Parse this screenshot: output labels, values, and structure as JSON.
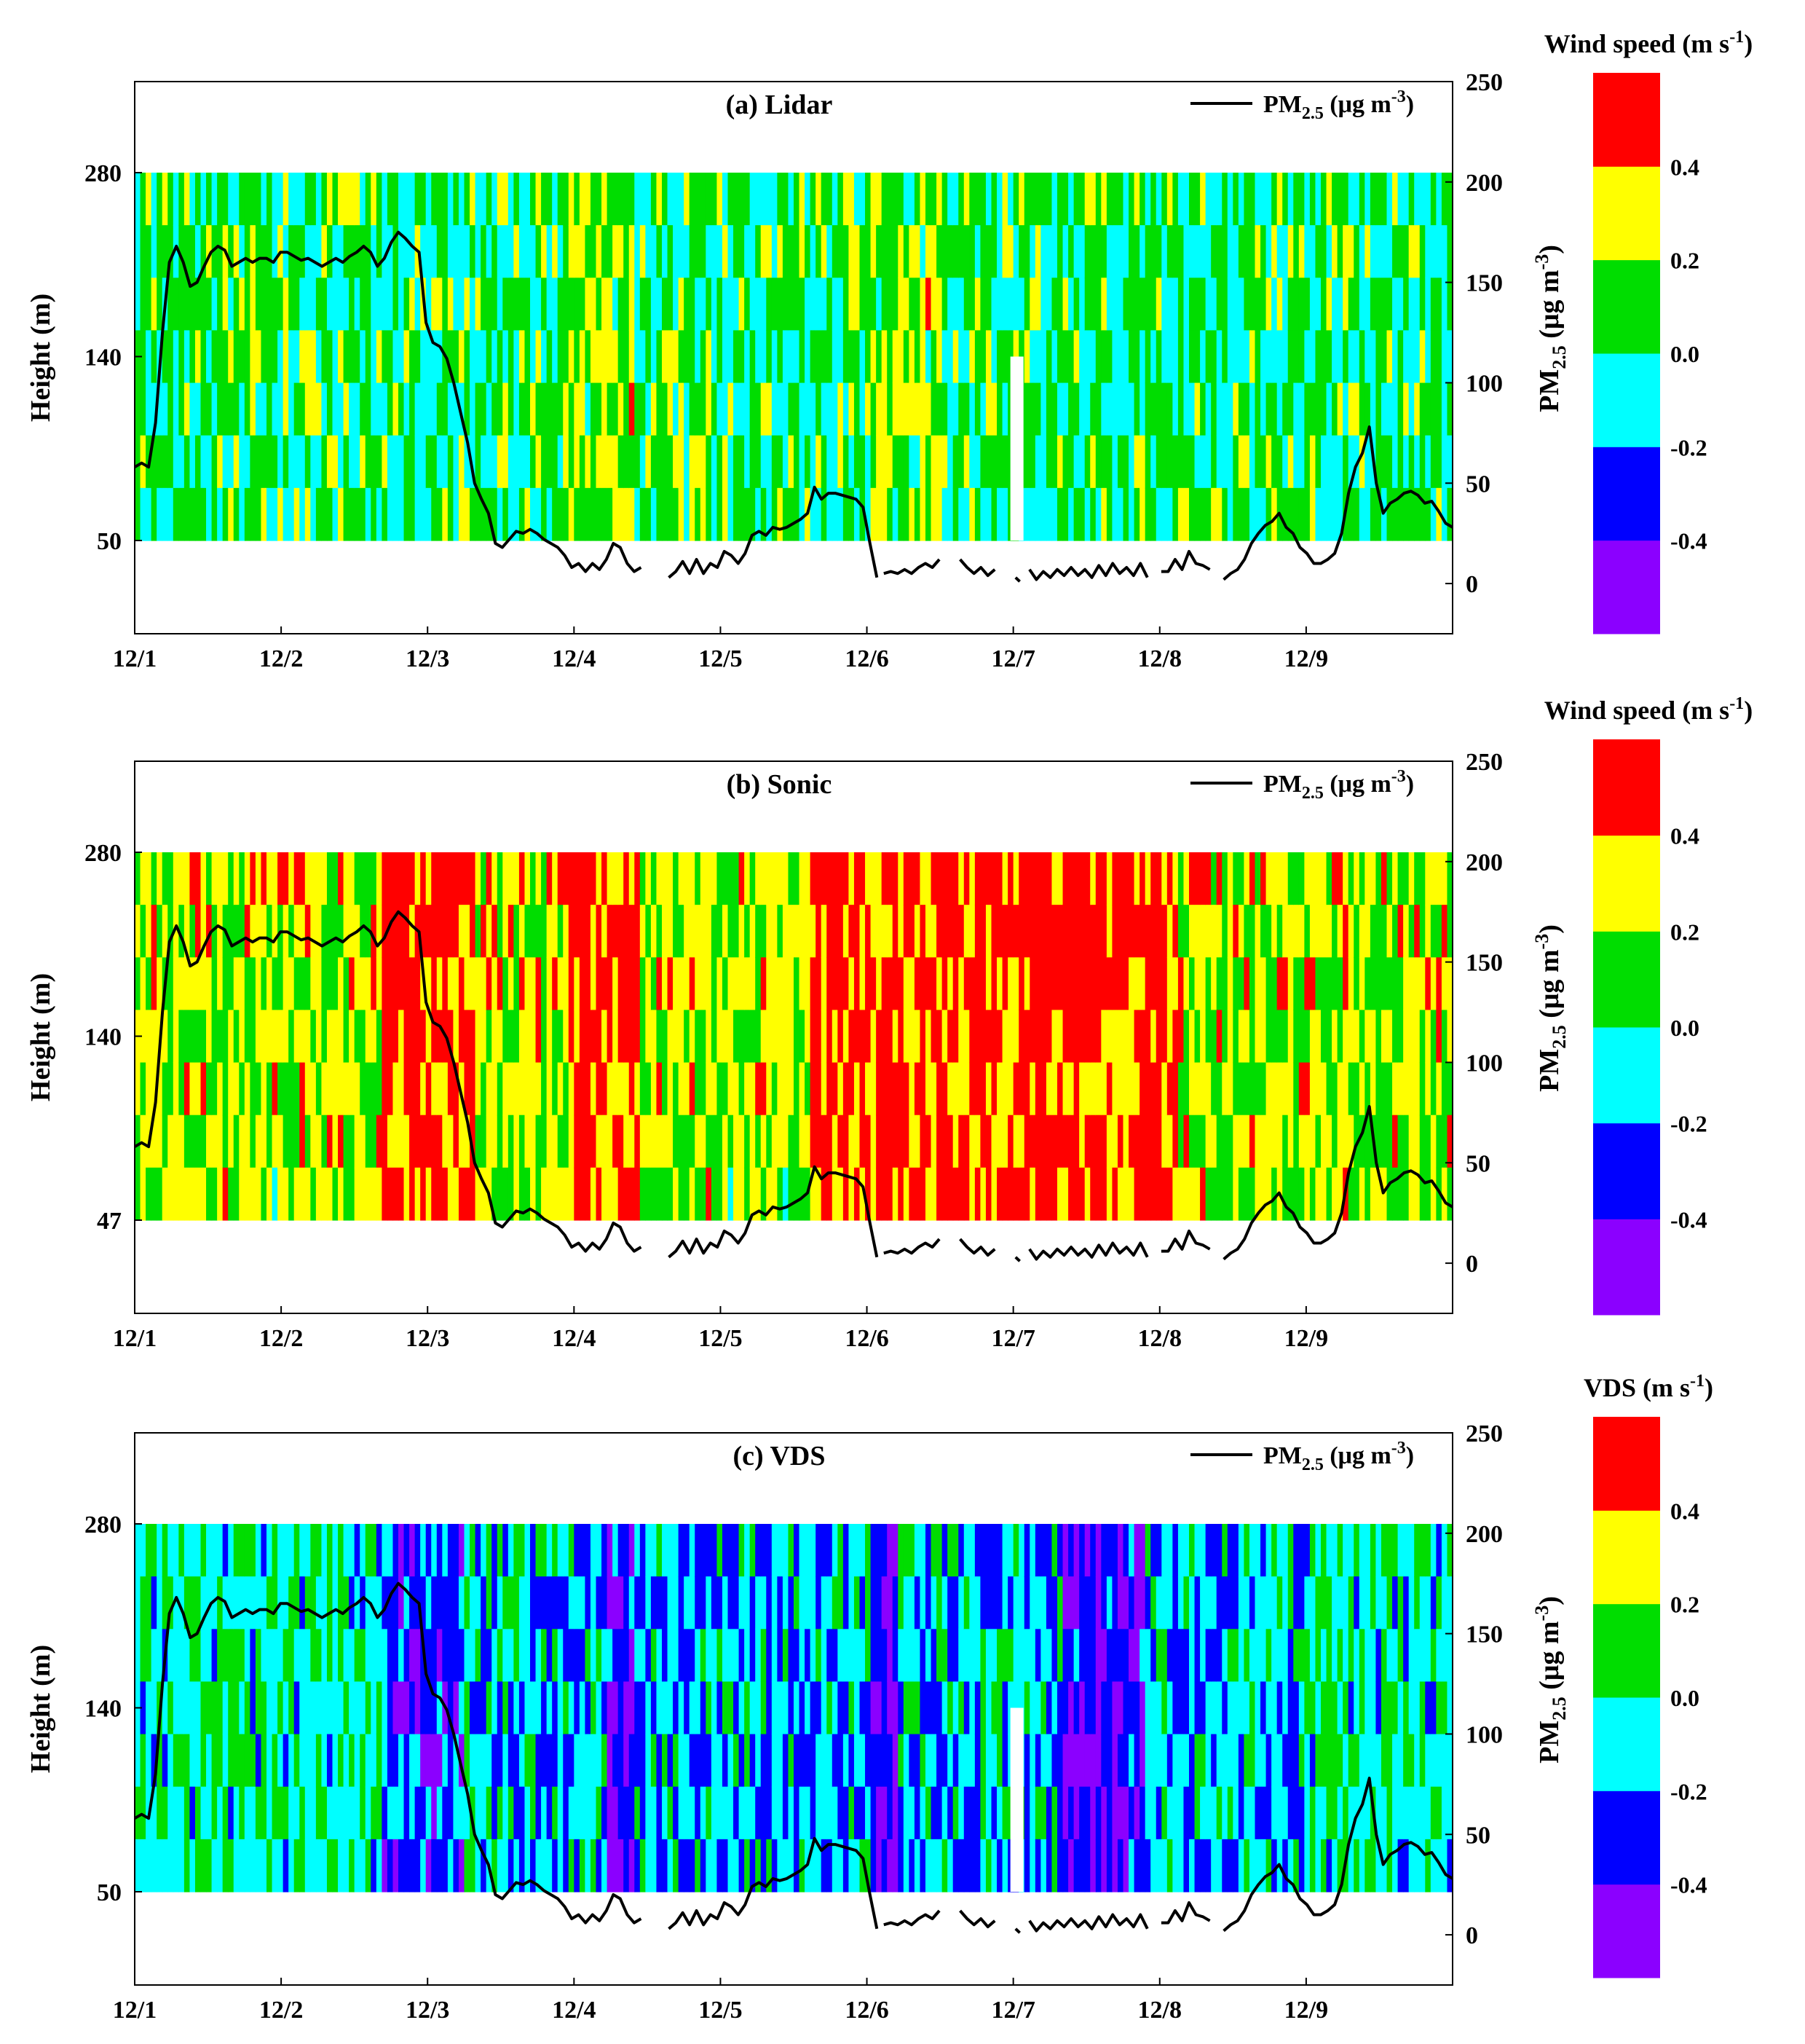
{
  "colors": {
    "bins": [
      "#8B00FF",
      "#0000FF",
      "#00FFFF",
      "#00DD00",
      "#FFFF00",
      "#FF0000"
    ],
    "line": "#000000",
    "frame": "#000000"
  },
  "chart_data": [
    {
      "type": "heatmap",
      "panel_label": "(a) Lidar",
      "legend_line_label": "PM",
      "legend_line_sub": "2.5",
      "legend_line_unit": " (μg m",
      "legend_line_sup": "-3",
      "legend_line_close": ")",
      "ylabel": "Height (m)",
      "y_ticks": [
        "280",
        "140",
        "50"
      ],
      "y2label": "PM",
      "y2label_sub": "2.5",
      "y2label_unit": " (μg m",
      "y2label_sup": "-3",
      "y2label_close": ")",
      "y2_ticks": [
        "250",
        "200",
        "150",
        "100",
        "50",
        "0"
      ],
      "y2lim": [
        -25,
        250
      ],
      "x_ticks": [
        "12/1",
        "12/2",
        "12/3",
        "12/4",
        "12/5",
        "12/6",
        "12/7",
        "12/8",
        "12/9"
      ],
      "colorbar_title": "Wind speed (m s",
      "colorbar_sup": "-1",
      "colorbar_close": ")",
      "colorbar_ticks": [
        "0.4",
        "0.2",
        "0.0",
        "-0.2",
        "-0.4"
      ],
      "colorbar_bins": [
        -0.6,
        -0.4,
        -0.2,
        0.0,
        0.2,
        0.4,
        0.6
      ],
      "field_bias": 0.05
    },
    {
      "type": "heatmap",
      "panel_label": "(b)  Sonic",
      "legend_line_label": "PM",
      "legend_line_sub": "2.5",
      "legend_line_unit": " (μg m",
      "legend_line_sup": "-3",
      "legend_line_close": ")",
      "ylabel": "Height (m)",
      "y_ticks": [
        "280",
        "140",
        "47"
      ],
      "y2label": "PM",
      "y2label_sub": "2.5",
      "y2label_unit": " (μg m",
      "y2label_sup": "-3",
      "y2label_close": ")",
      "y2_ticks": [
        "250",
        "200",
        "150",
        "100",
        "50",
        "0"
      ],
      "y2lim": [
        -25,
        250
      ],
      "x_ticks": [
        "12/1",
        "12/2",
        "12/3",
        "12/4",
        "12/5",
        "12/6",
        "12/7",
        "12/8",
        "12/9"
      ],
      "colorbar_title": "Wind speed (m s",
      "colorbar_sup": "-1",
      "colorbar_close": ")",
      "colorbar_ticks": [
        "0.4",
        "0.2",
        "0.0",
        "-0.2",
        "-0.4"
      ],
      "colorbar_bins": [
        -0.6,
        -0.4,
        -0.2,
        0.0,
        0.2,
        0.4,
        0.6
      ],
      "field_bias": 0.2
    },
    {
      "type": "heatmap",
      "panel_label": "(c) VDS",
      "legend_line_label": "PM",
      "legend_line_sub": "2.5",
      "legend_line_unit": " (μg m",
      "legend_line_sup": "-3",
      "legend_line_close": ")",
      "ylabel": "Height (m)",
      "y_ticks": [
        "280",
        "140",
        "50"
      ],
      "y2label": "PM",
      "y2label_sub": "2.5",
      "y2label_unit": " (μg m",
      "y2label_sup": "-3",
      "y2label_close": ")",
      "y2_ticks": [
        "250",
        "200",
        "150",
        "100",
        "50",
        "0"
      ],
      "y2lim": [
        -25,
        250
      ],
      "x_ticks": [
        "12/1",
        "12/2",
        "12/3",
        "12/4",
        "12/5",
        "12/6",
        "12/7",
        "12/8",
        "12/9"
      ],
      "colorbar_title": "VDS (m s",
      "colorbar_sup": "-1",
      "colorbar_close": ")",
      "colorbar_ticks": [
        "0.4",
        "0.2",
        "0.0",
        "-0.2",
        "-0.4"
      ],
      "colorbar_bins": [
        -0.6,
        -0.4,
        -0.2,
        0.0,
        0.2,
        0.4,
        0.6
      ],
      "field_bias": -0.02
    }
  ],
  "pm25_series": [
    [
      0,
      58
    ],
    [
      0.05,
      60
    ],
    [
      0.1,
      58
    ],
    [
      0.15,
      80
    ],
    [
      0.2,
      125
    ],
    [
      0.25,
      160
    ],
    [
      0.3,
      168
    ],
    [
      0.35,
      160
    ],
    [
      0.4,
      148
    ],
    [
      0.45,
      150
    ],
    [
      0.5,
      158
    ],
    [
      0.55,
      165
    ],
    [
      0.6,
      168
    ],
    [
      0.65,
      166
    ],
    [
      0.7,
      158
    ],
    [
      0.75,
      160
    ],
    [
      0.8,
      162
    ],
    [
      0.85,
      160
    ],
    [
      0.9,
      162
    ],
    [
      0.95,
      162
    ],
    [
      1.0,
      160
    ],
    [
      1.05,
      165
    ],
    [
      1.1,
      165
    ],
    [
      1.15,
      163
    ],
    [
      1.2,
      161
    ],
    [
      1.25,
      162
    ],
    [
      1.3,
      160
    ],
    [
      1.35,
      158
    ],
    [
      1.4,
      160
    ],
    [
      1.45,
      162
    ],
    [
      1.5,
      160
    ],
    [
      1.55,
      163
    ],
    [
      1.6,
      165
    ],
    [
      1.65,
      168
    ],
    [
      1.7,
      165
    ],
    [
      1.75,
      158
    ],
    [
      1.8,
      162
    ],
    [
      1.85,
      170
    ],
    [
      1.9,
      175
    ],
    [
      1.95,
      172
    ],
    [
      2.0,
      168
    ],
    [
      2.05,
      165
    ],
    [
      2.1,
      130
    ],
    [
      2.15,
      120
    ],
    [
      2.2,
      118
    ],
    [
      2.25,
      112
    ],
    [
      2.3,
      100
    ],
    [
      2.35,
      85
    ],
    [
      2.4,
      70
    ],
    [
      2.45,
      50
    ],
    [
      2.5,
      42
    ],
    [
      2.55,
      35
    ],
    [
      2.6,
      20
    ],
    [
      2.65,
      18
    ],
    [
      2.7,
      22
    ],
    [
      2.75,
      26
    ],
    [
      2.8,
      25
    ],
    [
      2.85,
      27
    ],
    [
      2.9,
      25
    ],
    [
      2.95,
      22
    ],
    [
      3.0,
      20
    ],
    [
      3.05,
      18
    ],
    [
      3.1,
      14
    ],
    [
      3.15,
      8
    ],
    [
      3.2,
      10
    ],
    [
      3.25,
      6
    ],
    [
      3.3,
      10
    ],
    [
      3.35,
      7
    ],
    [
      3.4,
      12
    ],
    [
      3.45,
      20
    ],
    [
      3.5,
      18
    ],
    [
      3.55,
      10
    ],
    [
      3.6,
      6
    ],
    [
      3.65,
      8
    ],
    [
      3.85,
      3
    ],
    [
      3.9,
      6
    ],
    [
      3.95,
      11
    ],
    [
      4.0,
      5
    ],
    [
      4.05,
      12
    ],
    [
      4.1,
      5
    ],
    [
      4.15,
      10
    ],
    [
      4.2,
      8
    ],
    [
      4.25,
      16
    ],
    [
      4.3,
      14
    ],
    [
      4.35,
      10
    ],
    [
      4.4,
      15
    ],
    [
      4.45,
      24
    ],
    [
      4.5,
      26
    ],
    [
      4.55,
      24
    ],
    [
      4.6,
      28
    ],
    [
      4.65,
      27
    ],
    [
      4.7,
      28
    ],
    [
      4.75,
      30
    ],
    [
      4.8,
      32
    ],
    [
      4.85,
      35
    ],
    [
      4.9,
      48
    ],
    [
      4.95,
      42
    ],
    [
      5.0,
      45
    ],
    [
      5.05,
      45
    ],
    [
      5.1,
      44
    ],
    [
      5.15,
      43
    ],
    [
      5.2,
      42
    ],
    [
      5.25,
      38
    ],
    [
      5.3,
      20
    ],
    [
      5.35,
      3
    ],
    [
      5.4,
      5
    ],
    [
      5.45,
      6
    ],
    [
      5.5,
      5
    ],
    [
      5.55,
      7
    ],
    [
      5.6,
      5
    ],
    [
      5.65,
      8
    ],
    [
      5.7,
      10
    ],
    [
      5.75,
      8
    ],
    [
      5.8,
      12
    ],
    [
      5.95,
      12
    ],
    [
      6.0,
      8
    ],
    [
      6.05,
      5
    ],
    [
      6.1,
      8
    ],
    [
      6.15,
      4
    ],
    [
      6.2,
      7
    ],
    [
      6.35,
      3
    ],
    [
      6.38,
      1
    ],
    [
      6.45,
      7
    ],
    [
      6.5,
      2
    ],
    [
      6.55,
      6
    ],
    [
      6.6,
      3
    ],
    [
      6.65,
      7
    ],
    [
      6.7,
      4
    ],
    [
      6.75,
      8
    ],
    [
      6.8,
      4
    ],
    [
      6.85,
      7
    ],
    [
      6.9,
      3
    ],
    [
      6.95,
      9
    ],
    [
      7.0,
      4
    ],
    [
      7.05,
      10
    ],
    [
      7.1,
      5
    ],
    [
      7.15,
      8
    ],
    [
      7.2,
      4
    ],
    [
      7.25,
      10
    ],
    [
      7.3,
      3
    ],
    [
      7.4,
      6
    ],
    [
      7.45,
      6
    ],
    [
      7.5,
      12
    ],
    [
      7.55,
      7
    ],
    [
      7.6,
      16
    ],
    [
      7.65,
      10
    ],
    [
      7.7,
      9
    ],
    [
      7.75,
      7
    ],
    [
      7.85,
      2
    ],
    [
      7.9,
      5
    ],
    [
      7.95,
      7
    ],
    [
      8.0,
      12
    ],
    [
      8.05,
      20
    ],
    [
      8.1,
      25
    ],
    [
      8.15,
      29
    ],
    [
      8.2,
      31
    ],
    [
      8.25,
      35
    ],
    [
      8.3,
      28
    ],
    [
      8.35,
      25
    ],
    [
      8.4,
      18
    ],
    [
      8.45,
      15
    ],
    [
      8.5,
      10
    ],
    [
      8.55,
      10
    ],
    [
      8.6,
      12
    ],
    [
      8.65,
      15
    ],
    [
      8.7,
      25
    ],
    [
      8.75,
      45
    ],
    [
      8.8,
      58
    ],
    [
      8.85,
      65
    ],
    [
      8.9,
      78
    ],
    [
      8.95,
      50
    ],
    [
      9.0,
      35
    ],
    [
      9.05,
      40
    ],
    [
      9.1,
      42
    ],
    [
      9.15,
      45
    ],
    [
      9.2,
      46
    ],
    [
      9.25,
      44
    ],
    [
      9.3,
      40
    ],
    [
      9.35,
      41
    ],
    [
      9.4,
      36
    ],
    [
      9.45,
      30
    ],
    [
      9.5,
      28
    ]
  ],
  "gaps_after_x": [
    3.65,
    5.35,
    5.8,
    6.2,
    6.38,
    7.3,
    7.75
  ]
}
